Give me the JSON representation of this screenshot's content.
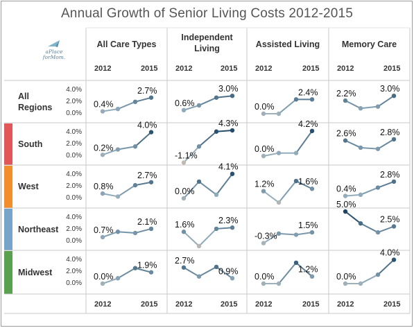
{
  "title": "Annual Growth of Senior Living Costs 2012-2015",
  "corner_note": "",
  "logo": {
    "line1": "aPlace",
    "line2": "forMom."
  },
  "columns": [
    "All Care Types",
    "Independent Living",
    "Assisted Living",
    "Memory Care"
  ],
  "column_lines": [
    [
      "All Care Types"
    ],
    [
      "Independent",
      "Living"
    ],
    [
      "Assisted Living"
    ],
    [
      "Memory Care"
    ]
  ],
  "year_start": "2012",
  "year_end": "2015",
  "y_ticks": [
    "4.0%",
    "2.0%",
    "0.0%"
  ],
  "rows": [
    {
      "name": "All Regions",
      "lines": [
        "All",
        "Regions"
      ],
      "color": null
    },
    {
      "name": "South",
      "lines": [
        "South"
      ],
      "color": "#e15759"
    },
    {
      "name": "West",
      "lines": [
        "West"
      ],
      "color": "#f28e2b"
    },
    {
      "name": "Northeast",
      "lines": [
        "Northeast"
      ],
      "color": "#76a5c9"
    },
    {
      "name": "Midwest",
      "lines": [
        "Midwest"
      ],
      "color": "#59a14f"
    }
  ],
  "chart_data": {
    "type": "line",
    "x": [
      "2012",
      "2013",
      "2014",
      "2015"
    ],
    "ylim": [
      -1.5,
      4.5
    ],
    "y_ticks": [
      0,
      2,
      4
    ],
    "unit": "%",
    "panels": [
      {
        "row": "All Regions",
        "column": "All Care Types",
        "values": [
          0.4,
          0.8,
          2.0,
          2.7
        ],
        "first_label": "0.4%",
        "last_label": "2.7%"
      },
      {
        "row": "All Regions",
        "column": "Independent Living",
        "values": [
          0.6,
          1.4,
          2.7,
          3.0
        ],
        "first_label": "0.6%",
        "last_label": "3.0%"
      },
      {
        "row": "All Regions",
        "column": "Assisted Living",
        "values": [
          0.0,
          0.0,
          2.4,
          2.4
        ],
        "first_label": "0.0%",
        "last_label": "2.4%"
      },
      {
        "row": "All Regions",
        "column": "Memory Care",
        "values": [
          2.2,
          0.9,
          1.2,
          3.0
        ],
        "first_label": "2.2%",
        "last_label": "3.0%"
      },
      {
        "row": "South",
        "column": "All Care Types",
        "values": [
          0.2,
          1.1,
          1.6,
          4.0
        ],
        "first_label": "0.2%",
        "last_label": "4.0%"
      },
      {
        "row": "South",
        "column": "Independent Living",
        "values": [
          -1.1,
          1.6,
          4.1,
          4.3
        ],
        "first_label": "-1.1%",
        "last_label": "4.3%"
      },
      {
        "row": "South",
        "column": "Assisted Living",
        "values": [
          0.0,
          0.5,
          0.5,
          4.2
        ],
        "first_label": "0.0%",
        "last_label": "4.2%"
      },
      {
        "row": "South",
        "column": "Memory Care",
        "values": [
          2.6,
          1.4,
          1.2,
          2.8
        ],
        "first_label": "2.6%",
        "last_label": "2.8%"
      },
      {
        "row": "West",
        "column": "All Care Types",
        "values": [
          0.8,
          0.3,
          2.2,
          2.7
        ],
        "first_label": "0.8%",
        "last_label": "2.7%"
      },
      {
        "row": "West",
        "column": "Independent Living",
        "values": [
          0.0,
          2.8,
          0.6,
          4.1
        ],
        "first_label": "0.0%",
        "last_label": "4.1%"
      },
      {
        "row": "West",
        "column": "Assisted Living",
        "values": [
          1.2,
          -0.7,
          2.9,
          1.6
        ],
        "first_label": "1.2%",
        "last_label": "1.6%"
      },
      {
        "row": "West",
        "column": "Memory Care",
        "values": [
          0.4,
          0.6,
          1.8,
          2.8
        ],
        "first_label": "0.4%",
        "last_label": "2.8%"
      },
      {
        "row": "Northeast",
        "column": "All Care Types",
        "values": [
          0.7,
          1.6,
          1.4,
          2.1
        ],
        "first_label": "0.7%",
        "last_label": "2.1%"
      },
      {
        "row": "Northeast",
        "column": "Independent Living",
        "values": [
          1.6,
          -0.8,
          2.1,
          2.3
        ],
        "first_label": "1.6%",
        "last_label": "2.3%"
      },
      {
        "row": "Northeast",
        "column": "Assisted Living",
        "values": [
          -0.3,
          1.3,
          1.1,
          1.5
        ],
        "first_label": "-0.3%",
        "last_label": "1.5%"
      },
      {
        "row": "Northeast",
        "column": "Memory Care",
        "values": [
          5.0,
          3.0,
          1.5,
          2.5
        ],
        "first_label": "5.0%",
        "last_label": "2.5%"
      },
      {
        "row": "Midwest",
        "column": "All Care Types",
        "values": [
          0.0,
          0.9,
          2.6,
          1.9
        ],
        "first_label": "0.0%",
        "last_label": "1.9%"
      },
      {
        "row": "Midwest",
        "column": "Independent Living",
        "values": [
          2.7,
          1.2,
          2.8,
          0.9
        ],
        "first_label": "2.7%",
        "last_label": "0.9%"
      },
      {
        "row": "Midwest",
        "column": "Assisted Living",
        "values": [
          0.0,
          0.0,
          3.5,
          1.2
        ],
        "first_label": "0.0%",
        "last_label": "1.2%"
      },
      {
        "row": "Midwest",
        "column": "Memory Care",
        "values": [
          0.0,
          0.0,
          1.5,
          4.0
        ],
        "first_label": "0.0%",
        "last_label": "4.0%"
      }
    ]
  }
}
